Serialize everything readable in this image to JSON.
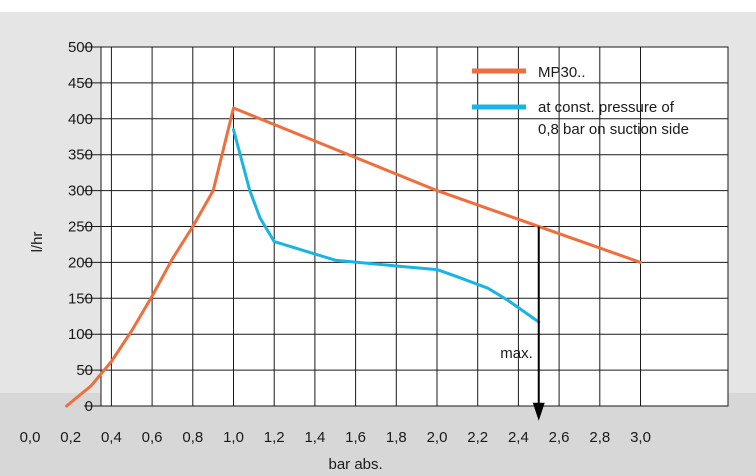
{
  "chart_data": {
    "type": "line",
    "xlabel": "bar abs.",
    "ylabel": "l/hr",
    "xlim": [
      0.0,
      3.0
    ],
    "ylim": [
      0,
      500
    ],
    "x_ticks": [
      "0,0",
      "0,2",
      "0,4",
      "0,6",
      "0,8",
      "1,0",
      "1,2",
      "1,4",
      "1,6",
      "1,8",
      "2,0",
      "2,2",
      "2,4",
      "2,6",
      "2,8",
      "3,0"
    ],
    "y_ticks": [
      "0",
      "50",
      "100",
      "150",
      "200",
      "250",
      "300",
      "350",
      "400",
      "450",
      "500"
    ],
    "grid": true,
    "legend_position": "top-right",
    "series": [
      {
        "name": "MP30..",
        "color": "#ee6f3d",
        "points": [
          [
            0.18,
            0
          ],
          [
            0.3,
            28
          ],
          [
            0.4,
            62
          ],
          [
            0.5,
            105
          ],
          [
            0.6,
            153
          ],
          [
            0.7,
            205
          ],
          [
            0.8,
            250
          ],
          [
            0.9,
            300
          ],
          [
            1.0,
            415
          ],
          [
            2.0,
            300
          ],
          [
            3.0,
            200
          ]
        ]
      },
      {
        "name_lines": [
          "at const. pressure of",
          "0,8 bar on suction side"
        ],
        "color": "#1ab4e2",
        "points": [
          [
            1.0,
            385
          ],
          [
            1.08,
            300
          ],
          [
            1.13,
            262
          ],
          [
            1.2,
            229
          ],
          [
            1.5,
            203
          ],
          [
            1.8,
            195
          ],
          [
            2.0,
            190
          ],
          [
            2.1,
            180
          ],
          [
            2.25,
            164
          ],
          [
            2.35,
            147
          ],
          [
            2.5,
            117
          ]
        ]
      }
    ],
    "annotation": {
      "label": "max.",
      "x": 2.5,
      "y_start": 250,
      "y_end": -15
    }
  }
}
